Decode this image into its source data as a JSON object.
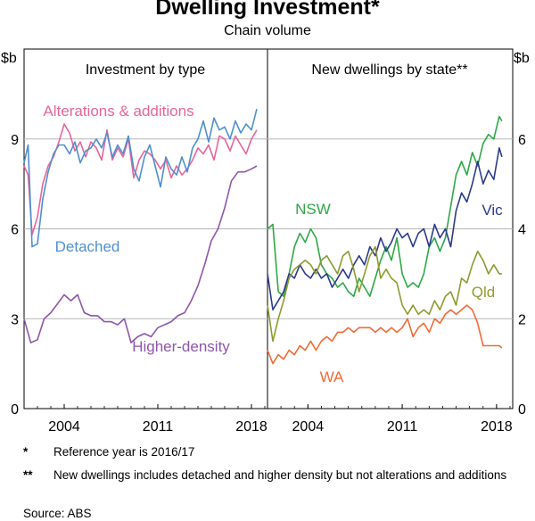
{
  "title": "Dwelling Investment*",
  "subtitle": "Chain volume",
  "chart_data": [
    {
      "type": "line",
      "panel_title": "Investment by type",
      "ylabel": "$b",
      "ylim": [
        0,
        12
      ],
      "yticks": [
        0,
        3,
        6,
        9
      ],
      "xlim": [
        2001.0,
        2019.2
      ],
      "xticks": [
        2004,
        2011,
        2018
      ],
      "series": [
        {
          "name": "Alterations & additions",
          "color": "#e8649b",
          "x": [
            2001.0,
            2001.3,
            2001.6,
            2002.0,
            2002.4,
            2002.8,
            2003.2,
            2003.6,
            2004.0,
            2004.4,
            2004.8,
            2005.2,
            2005.6,
            2006.0,
            2006.4,
            2006.8,
            2007.2,
            2007.6,
            2008.0,
            2008.4,
            2008.8,
            2009.2,
            2009.6,
            2010.0,
            2010.4,
            2010.8,
            2011.2,
            2011.6,
            2012.0,
            2012.4,
            2012.8,
            2013.2,
            2013.6,
            2014.0,
            2014.4,
            2014.8,
            2015.2,
            2015.6,
            2016.0,
            2016.4,
            2016.8,
            2017.2,
            2017.6,
            2018.0,
            2018.4
          ],
          "values": [
            8.1,
            7.8,
            5.8,
            6.4,
            7.5,
            8.1,
            8.4,
            8.9,
            9.5,
            9.2,
            8.6,
            8.9,
            8.4,
            8.9,
            8.7,
            8.3,
            9.3,
            8.3,
            8.7,
            8.4,
            9.0,
            7.7,
            8.3,
            8.6,
            8.5,
            8.3,
            8.0,
            8.3,
            7.7,
            8.1,
            7.8,
            8.0,
            8.3,
            8.7,
            8.5,
            8.8,
            8.3,
            9.1,
            9.0,
            8.6,
            9.1,
            8.8,
            8.5,
            9.0,
            9.3
          ]
        },
        {
          "name": "Detached",
          "color": "#4f8fcf",
          "x": [
            2001.0,
            2001.3,
            2001.6,
            2002.0,
            2002.4,
            2002.8,
            2003.2,
            2003.6,
            2004.0,
            2004.4,
            2004.8,
            2005.2,
            2005.6,
            2006.0,
            2006.4,
            2006.8,
            2007.2,
            2007.6,
            2008.0,
            2008.4,
            2008.8,
            2009.2,
            2009.6,
            2010.0,
            2010.4,
            2010.8,
            2011.2,
            2011.6,
            2012.0,
            2012.4,
            2012.8,
            2013.2,
            2013.6,
            2014.0,
            2014.4,
            2014.8,
            2015.2,
            2015.6,
            2016.0,
            2016.4,
            2016.8,
            2017.2,
            2017.6,
            2018.0,
            2018.4
          ],
          "values": [
            8.2,
            8.8,
            5.4,
            5.5,
            7.0,
            7.9,
            8.5,
            8.8,
            8.8,
            8.5,
            8.9,
            8.2,
            8.6,
            8.7,
            9.0,
            8.7,
            9.2,
            8.4,
            8.8,
            8.5,
            9.1,
            8.0,
            7.6,
            8.4,
            8.8,
            8.1,
            7.4,
            8.4,
            8.0,
            7.8,
            8.4,
            7.9,
            8.7,
            9.0,
            9.6,
            8.9,
            9.7,
            9.3,
            9.4,
            9.0,
            9.6,
            9.2,
            9.5,
            9.3,
            10.0
          ]
        },
        {
          "name": "Higher-density",
          "color": "#8f55ac",
          "x": [
            2001.0,
            2001.5,
            2002.0,
            2002.5,
            2003.0,
            2003.5,
            2004.0,
            2004.5,
            2005.0,
            2005.5,
            2006.0,
            2006.5,
            2007.0,
            2007.5,
            2008.0,
            2008.5,
            2009.0,
            2009.5,
            2010.0,
            2010.5,
            2011.0,
            2011.5,
            2012.0,
            2012.5,
            2013.0,
            2013.5,
            2014.0,
            2014.5,
            2015.0,
            2015.5,
            2016.0,
            2016.5,
            2017.0,
            2017.5,
            2018.0,
            2018.4
          ],
          "values": [
            3.0,
            2.2,
            2.3,
            3.0,
            3.2,
            3.5,
            3.8,
            3.6,
            3.8,
            3.2,
            3.1,
            3.1,
            2.9,
            2.9,
            2.8,
            3.0,
            2.2,
            2.4,
            2.5,
            2.4,
            2.7,
            2.8,
            2.9,
            3.1,
            3.2,
            3.6,
            4.1,
            4.8,
            5.6,
            6.0,
            6.7,
            7.6,
            7.9,
            7.9,
            8.0,
            8.1
          ]
        }
      ]
    },
    {
      "type": "line",
      "panel_title": "New dwellings by state**",
      "ylabel": "$b",
      "ylim": [
        0,
        8
      ],
      "yticks": [
        0,
        2,
        4,
        6
      ],
      "xlim": [
        2001.0,
        2019.2
      ],
      "xticks": [
        2004,
        2011,
        2018
      ],
      "series": [
        {
          "name": "NSW",
          "color": "#2ea845",
          "x": [
            2001.0,
            2001.4,
            2001.8,
            2002.2,
            2002.6,
            2003.0,
            2003.4,
            2003.8,
            2004.2,
            2004.6,
            2005.0,
            2005.4,
            2005.8,
            2006.2,
            2006.6,
            2007.0,
            2007.4,
            2007.8,
            2008.2,
            2008.6,
            2009.0,
            2009.4,
            2009.8,
            2010.2,
            2010.6,
            2011.0,
            2011.4,
            2011.8,
            2012.2,
            2012.6,
            2013.0,
            2013.4,
            2013.8,
            2014.2,
            2014.6,
            2015.0,
            2015.4,
            2015.8,
            2016.2,
            2016.6,
            2017.0,
            2017.4,
            2017.8,
            2018.2,
            2018.4
          ],
          "values": [
            4.0,
            4.1,
            2.6,
            2.5,
            3.0,
            3.6,
            3.9,
            3.7,
            4.0,
            3.8,
            3.2,
            3.0,
            2.9,
            2.7,
            2.8,
            2.6,
            2.5,
            2.9,
            2.7,
            2.5,
            2.9,
            3.3,
            3.6,
            3.3,
            3.8,
            3.0,
            2.7,
            2.8,
            2.7,
            3.0,
            3.6,
            3.8,
            3.5,
            3.8,
            4.5,
            5.2,
            5.5,
            5.2,
            5.7,
            5.4,
            5.9,
            6.1,
            6.0,
            6.5,
            6.4
          ]
        },
        {
          "name": "Vic",
          "color": "#2b3a8c",
          "x": [
            2001.0,
            2001.4,
            2001.8,
            2002.2,
            2002.6,
            2003.0,
            2003.4,
            2003.8,
            2004.2,
            2004.6,
            2005.0,
            2005.4,
            2005.8,
            2006.2,
            2006.6,
            2007.0,
            2007.4,
            2007.8,
            2008.2,
            2008.6,
            2009.0,
            2009.4,
            2009.8,
            2010.2,
            2010.6,
            2011.0,
            2011.4,
            2011.8,
            2012.2,
            2012.6,
            2013.0,
            2013.4,
            2013.8,
            2014.2,
            2014.6,
            2015.0,
            2015.4,
            2015.8,
            2016.2,
            2016.6,
            2017.0,
            2017.4,
            2017.8,
            2018.2,
            2018.4
          ],
          "values": [
            3.0,
            2.2,
            2.4,
            2.6,
            3.0,
            2.9,
            3.2,
            3.0,
            2.9,
            3.1,
            2.9,
            3.0,
            2.7,
            2.9,
            3.1,
            2.9,
            3.2,
            3.4,
            3.2,
            3.6,
            3.4,
            3.8,
            3.5,
            3.7,
            4.0,
            3.8,
            3.9,
            3.6,
            3.9,
            4.0,
            3.6,
            4.1,
            3.8,
            4.0,
            3.6,
            4.4,
            4.8,
            4.6,
            5.0,
            5.5,
            5.0,
            5.3,
            5.1,
            5.8,
            5.6
          ]
        },
        {
          "name": "Qld",
          "color": "#8f9a2e",
          "x": [
            2001.0,
            2001.4,
            2001.8,
            2002.2,
            2002.6,
            2003.0,
            2003.4,
            2003.8,
            2004.2,
            2004.6,
            2005.0,
            2005.4,
            2005.8,
            2006.2,
            2006.6,
            2007.0,
            2007.4,
            2007.8,
            2008.2,
            2008.6,
            2009.0,
            2009.4,
            2009.8,
            2010.2,
            2010.6,
            2011.0,
            2011.4,
            2011.8,
            2012.2,
            2012.6,
            2013.0,
            2013.4,
            2013.8,
            2014.2,
            2014.6,
            2015.0,
            2015.4,
            2015.8,
            2016.2,
            2016.6,
            2017.0,
            2017.4,
            2017.8,
            2018.2,
            2018.4
          ],
          "values": [
            2.3,
            1.5,
            2.0,
            2.4,
            2.9,
            3.1,
            3.2,
            3.3,
            3.2,
            3.0,
            3.3,
            3.4,
            3.2,
            3.0,
            3.4,
            3.5,
            3.1,
            2.6,
            3.0,
            3.4,
            3.6,
            2.9,
            3.1,
            2.9,
            2.8,
            2.3,
            2.1,
            2.3,
            2.1,
            2.2,
            2.1,
            2.4,
            2.2,
            2.5,
            2.6,
            2.3,
            2.9,
            2.8,
            3.2,
            3.5,
            3.3,
            3.0,
            3.2,
            3.0,
            3.0
          ]
        },
        {
          "name": "WA",
          "color": "#f26a35",
          "x": [
            2001.0,
            2001.4,
            2001.8,
            2002.2,
            2002.6,
            2003.0,
            2003.4,
            2003.8,
            2004.2,
            2004.6,
            2005.0,
            2005.4,
            2005.8,
            2006.2,
            2006.6,
            2007.0,
            2007.4,
            2007.8,
            2008.2,
            2008.6,
            2009.0,
            2009.4,
            2009.8,
            2010.2,
            2010.6,
            2011.0,
            2011.4,
            2011.8,
            2012.2,
            2012.6,
            2013.0,
            2013.4,
            2013.8,
            2014.2,
            2014.6,
            2015.0,
            2015.4,
            2015.8,
            2016.2,
            2016.6,
            2017.0,
            2017.4,
            2017.8,
            2018.2,
            2018.4
          ],
          "values": [
            1.3,
            1.0,
            1.2,
            1.1,
            1.3,
            1.2,
            1.4,
            1.3,
            1.5,
            1.3,
            1.5,
            1.6,
            1.5,
            1.7,
            1.7,
            1.8,
            1.7,
            1.8,
            1.8,
            1.8,
            1.7,
            1.8,
            1.7,
            1.8,
            1.7,
            1.8,
            2.0,
            1.6,
            1.8,
            1.9,
            1.7,
            2.0,
            1.9,
            2.1,
            2.2,
            2.1,
            2.2,
            2.3,
            2.2,
            1.9,
            1.4,
            1.4,
            1.4,
            1.4,
            1.35
          ]
        }
      ]
    }
  ],
  "notes": [
    {
      "mark": "*",
      "text": "Reference year is 2016/17"
    },
    {
      "mark": "**",
      "text": "New dwellings includes detached and higher density but not alterations and additions"
    }
  ],
  "source": "Source:   ABS"
}
